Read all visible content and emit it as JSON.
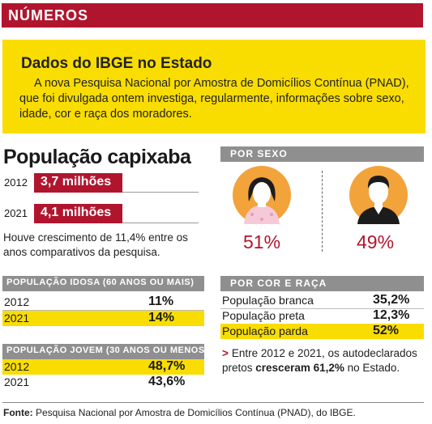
{
  "banner": {
    "title": "NÚMEROS"
  },
  "ibge": {
    "title": "Dados do IBGE no Estado",
    "text": "A nova Pesquisa Nacional por Amostra de Domicílios Contínua (PNAD), que foi divulgada ontem investiga, regularmente, informações sobre sexo, idade, cor e raça dos moradores."
  },
  "populacao": {
    "title": "População capixaba",
    "rows": [
      {
        "year": "2012",
        "value": "3,7 milhões"
      },
      {
        "year": "2021",
        "value": "4,1 milhões"
      }
    ],
    "growth": "Houve crescimento de 11,4% entre os anos comparativos da pesquisa."
  },
  "por_sexo": {
    "header": "POR SEXO",
    "female_pct": "51%",
    "male_pct": "49%",
    "female_icon": "woman-avatar-icon",
    "male_icon": "man-avatar-icon"
  },
  "idosa": {
    "header": "POPULAÇÃO IDOSA (60 ANOS OU MAIS)",
    "rows": [
      {
        "year": "2012",
        "value": "11%"
      },
      {
        "year": "2021",
        "value": "14%"
      }
    ]
  },
  "jovem": {
    "header": "POPULAÇÃO JOVEM (30 ANOS OU MENOS)",
    "rows": [
      {
        "year": "2012",
        "value": "48,7%"
      },
      {
        "year": "2021",
        "value": "43,6%"
      }
    ]
  },
  "raca": {
    "header": "POR COR E RAÇA",
    "rows": [
      {
        "label": "População branca",
        "value": "35,2%"
      },
      {
        "label": "População preta",
        "value": "12,3%"
      },
      {
        "label": "População parda",
        "value": "52%"
      }
    ],
    "note_arrow": ">",
    "note_pre": "Entre 2012 e 2021, os autodeclarados pretos ",
    "note_bold": "cresceram 61,2%",
    "note_post": " no Estado."
  },
  "footer": {
    "label": "Fonte:",
    "text": " Pesquisa Nacional por Amostra de Domicílios Contínua (PNAD), do IBGE."
  },
  "colors": {
    "accent_red": "#b1152e",
    "highlight_yellow": "#f9dd00",
    "section_gray": "#8f8f8f",
    "avatar_orange": "#f2a33a"
  }
}
